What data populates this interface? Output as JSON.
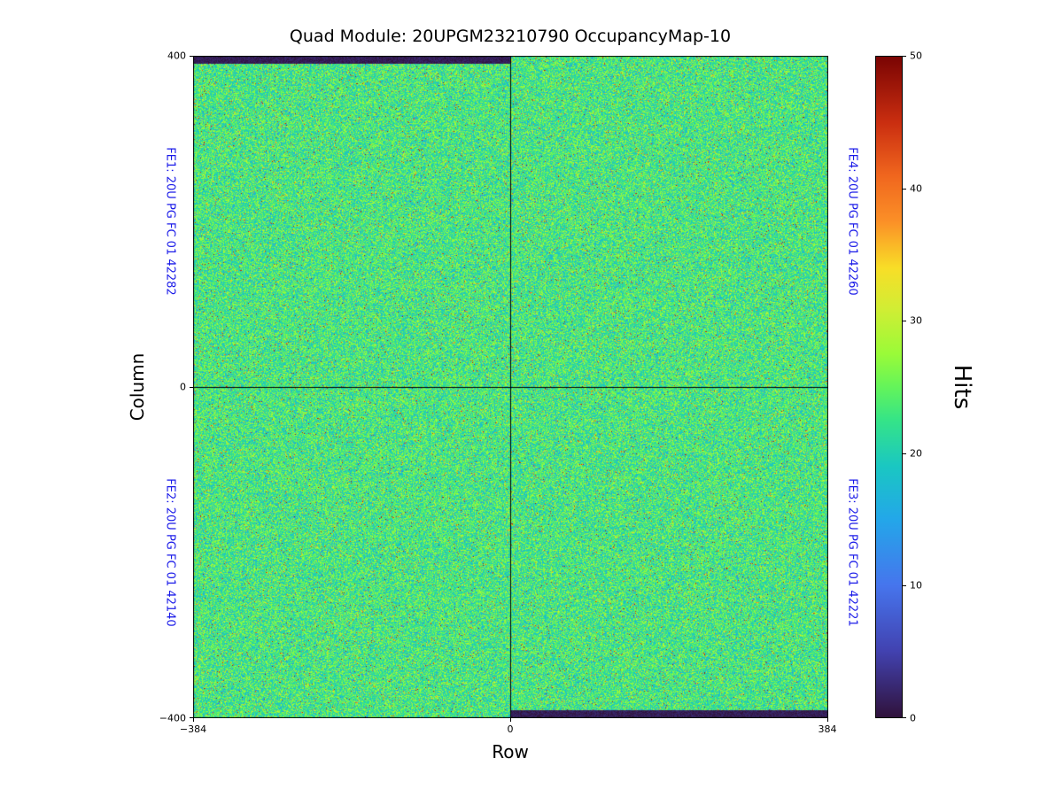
{
  "title": "Quad Module: 20UPGM23210790 OccupancyMap-10",
  "axes": {
    "xlabel": "Row",
    "ylabel": "Column",
    "xticks": [
      "−384",
      "0",
      "384"
    ],
    "yticks": [
      "400",
      "0",
      "−400"
    ]
  },
  "fe_labels": {
    "fe1": "FE1: 20U PG FC 01 42282",
    "fe2": "FE2: 20U PG FC 01 42140",
    "fe3": "FE3: 20U PG FC 01 42221",
    "fe4": "FE4: 20U PG FC 01 42260"
  },
  "colorbar": {
    "label": "Hits",
    "ticks": [
      "0",
      "10",
      "20",
      "30",
      "40",
      "50"
    ]
  },
  "colors": {
    "fe_label": "#1a1ae8",
    "axis": "#000000"
  },
  "chart_data": {
    "type": "heatmap",
    "title": "Quad Module: 20UPGM23210790 OccupancyMap-10",
    "xlabel": "Row",
    "ylabel": "Column",
    "xlim": [
      -384,
      384
    ],
    "ylim": [
      -400,
      400
    ],
    "grid": false,
    "legend": "none",
    "colorbar": {
      "label": "Hits",
      "min": 0,
      "max": 50,
      "ticks": [
        0,
        10,
        20,
        30,
        40,
        50
      ],
      "colormap": "turbo",
      "position": "right"
    },
    "quadrants": [
      {
        "position": "top-left",
        "chip": "FE1",
        "label": "FE1: 20U PG FC 01 42282"
      },
      {
        "position": "bottom-left",
        "chip": "FE2",
        "label": "FE2: 20U PG FC 01 42140"
      },
      {
        "position": "bottom-right",
        "chip": "FE3",
        "label": "FE3: 20U PG FC 01 42221"
      },
      {
        "position": "top-right",
        "chip": "FE4",
        "label": "FE4: 20U PG FC 01 42260"
      }
    ],
    "data_description": {
      "pattern": "uniform speckle occupancy noise over all four front-end quadrants",
      "typical_hits_min": 17,
      "typical_hits_max": 29,
      "hot_speckle_fraction": 0.04,
      "hot_speckle_min": 28,
      "hot_speckle_max": 48,
      "cold_speckle_fraction": 0.03,
      "cold_speckle_min": 8,
      "cold_speckle_max": 17,
      "dead_regions": [
        {
          "location": "topmost ~8 columns of left half (FE1 top edge, column ~392 to 400)",
          "hits": 0
        },
        {
          "location": "bottommost ~8 columns of right half (FE3 bottom edge, column ~-400 to -392)",
          "hits": 0
        }
      ],
      "divider_lines": "black line at Row=0 and Column=0 separating the four chips"
    },
    "colormap_stops": [
      [
        0.0,
        "#30123b"
      ],
      [
        0.1,
        "#4242b0"
      ],
      [
        0.2,
        "#4675ed"
      ],
      [
        0.3,
        "#23a7e9"
      ],
      [
        0.38,
        "#1ac7c2"
      ],
      [
        0.45,
        "#35e487"
      ],
      [
        0.5,
        "#64f45a"
      ],
      [
        0.55,
        "#9afb38"
      ],
      [
        0.62,
        "#d2ed34"
      ],
      [
        0.68,
        "#f8de27"
      ],
      [
        0.75,
        "#fb9027"
      ],
      [
        0.82,
        "#f0661e"
      ],
      [
        0.9,
        "#ca2e10"
      ],
      [
        1.0,
        "#7a0403"
      ]
    ],
    "render_seed": 20790
  }
}
